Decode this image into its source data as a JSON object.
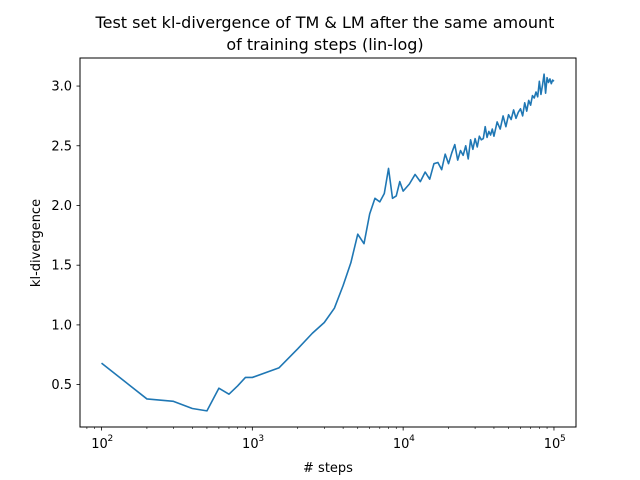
{
  "chart_data": {
    "type": "line",
    "title_lines": [
      "Test set kl-divergence of TM & LM after the same amount",
      "of training steps (lin-log)"
    ],
    "xlabel": "# steps",
    "ylabel": "kl-divergence",
    "xscale": "log",
    "xlim": [
      72,
      140000
    ],
    "ylim": [
      0.145,
      3.235
    ],
    "grid": false,
    "line_color": "#1f77b4",
    "x_ticks": [
      {
        "base": "10",
        "exp": "2",
        "value": 100
      },
      {
        "base": "10",
        "exp": "3",
        "value": 1000
      },
      {
        "base": "10",
        "exp": "4",
        "value": 10000
      },
      {
        "base": "10",
        "exp": "5",
        "value": 100000
      }
    ],
    "y_ticks": [
      {
        "label": "0.5",
        "value": 0.5
      },
      {
        "label": "1.0",
        "value": 1.0
      },
      {
        "label": "1.5",
        "value": 1.5
      },
      {
        "label": "2.0",
        "value": 2.0
      },
      {
        "label": "2.5",
        "value": 2.5
      },
      {
        "label": "3.0",
        "value": 3.0
      }
    ],
    "series": [
      {
        "x": [
          100,
          200,
          300,
          400,
          500,
          600,
          700,
          800,
          900,
          1000,
          1500,
          2000,
          2500,
          3000,
          3500,
          4000,
          4500,
          5000,
          5500,
          6000,
          6500,
          7000,
          7500,
          8000,
          8500,
          9000,
          9500,
          10000,
          11000,
          12000,
          13000,
          14000,
          15000,
          16000,
          17000,
          18000,
          19000,
          20000,
          21000,
          22000,
          23000,
          24000,
          25000,
          26000,
          27000,
          28000,
          29000,
          30000,
          31000,
          32000,
          33000,
          34000,
          35000,
          36000,
          37000,
          38000,
          39000,
          40000,
          42000,
          44000,
          46000,
          48000,
          50000,
          52000,
          54000,
          56000,
          58000,
          60000,
          62000,
          64000,
          66000,
          68000,
          70000,
          72000,
          74000,
          76000,
          78000,
          80000,
          82000,
          84000,
          86000,
          88000,
          90000,
          92000,
          94000,
          96000,
          98000,
          100000
        ],
        "y": [
          0.68,
          0.38,
          0.36,
          0.3,
          0.28,
          0.47,
          0.42,
          0.49,
          0.56,
          0.56,
          0.64,
          0.8,
          0.93,
          1.02,
          1.14,
          1.33,
          1.52,
          1.76,
          1.68,
          1.93,
          2.06,
          2.03,
          2.1,
          2.31,
          2.06,
          2.08,
          2.2,
          2.12,
          2.18,
          2.26,
          2.2,
          2.28,
          2.22,
          2.35,
          2.36,
          2.3,
          2.43,
          2.35,
          2.44,
          2.51,
          2.38,
          2.46,
          2.42,
          2.5,
          2.39,
          2.55,
          2.47,
          2.56,
          2.49,
          2.58,
          2.55,
          2.56,
          2.66,
          2.57,
          2.62,
          2.59,
          2.64,
          2.58,
          2.7,
          2.64,
          2.75,
          2.66,
          2.76,
          2.72,
          2.8,
          2.73,
          2.78,
          2.81,
          2.75,
          2.86,
          2.79,
          2.88,
          2.84,
          2.92,
          2.9,
          2.95,
          2.91,
          3.04,
          2.93,
          3.01,
          3.1,
          2.94,
          3.07,
          3.03,
          3.06,
          3.02,
          3.05,
          3.04
        ]
      }
    ]
  }
}
